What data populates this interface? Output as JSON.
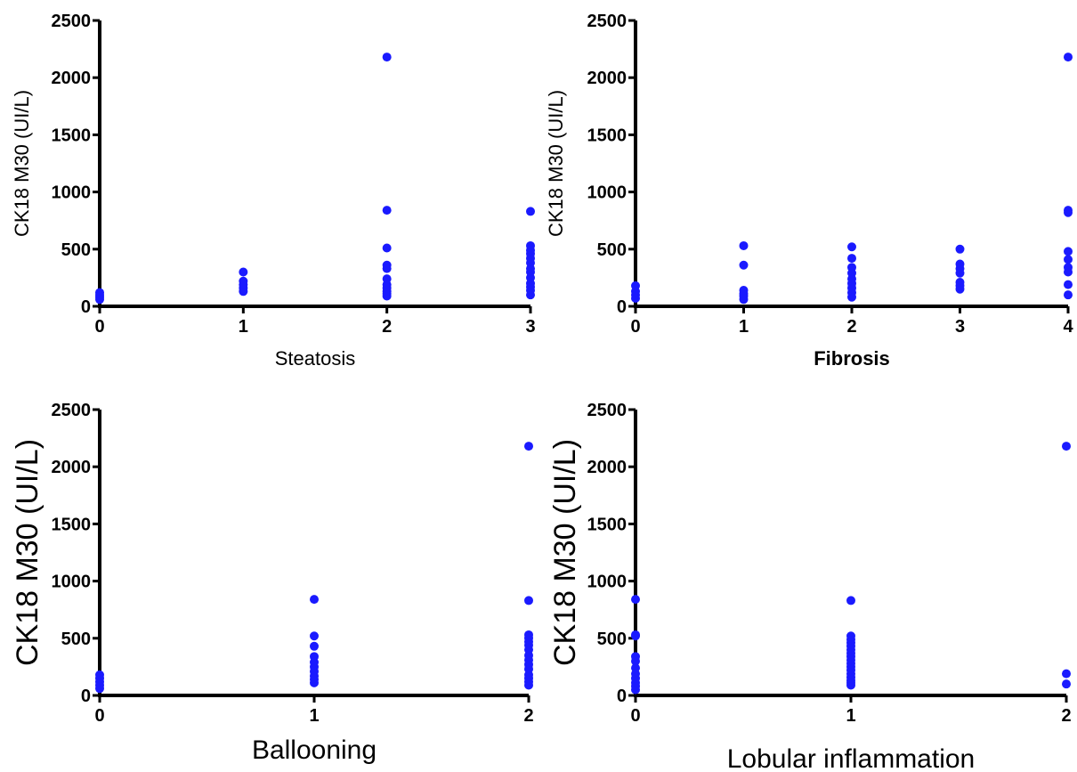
{
  "chart_data": [
    {
      "type": "scatter",
      "xlabel": "Steatosis",
      "ylabel": "CK18 M30 (UI/L)",
      "xlim": [
        0,
        3
      ],
      "ylim": [
        0,
        2500
      ],
      "x_ticks": [
        "0",
        "1",
        "2",
        "3"
      ],
      "y_ticks": [
        "0",
        "500",
        "1000",
        "1500",
        "2000",
        "2500"
      ],
      "marker_color": "#1a1aff",
      "series": [
        {
          "points": [
            [
              0,
              60
            ],
            [
              0,
              80
            ],
            [
              0,
              100
            ],
            [
              0,
              120
            ],
            [
              1,
              130
            ],
            [
              1,
              160
            ],
            [
              1,
              190
            ],
            [
              1,
              220
            ],
            [
              1,
              300
            ],
            [
              2,
              90
            ],
            [
              2,
              110
            ],
            [
              2,
              130
            ],
            [
              2,
              160
            ],
            [
              2,
              190
            ],
            [
              2,
              240
            ],
            [
              2,
              330
            ],
            [
              2,
              360
            ],
            [
              2,
              510
            ],
            [
              2,
              840
            ],
            [
              2,
              2180
            ],
            [
              3,
              100
            ],
            [
              3,
              140
            ],
            [
              3,
              170
            ],
            [
              3,
              200
            ],
            [
              3,
              250
            ],
            [
              3,
              300
            ],
            [
              3,
              330
            ],
            [
              3,
              380
            ],
            [
              3,
              420
            ],
            [
              3,
              460
            ],
            [
              3,
              490
            ],
            [
              3,
              530
            ],
            [
              3,
              830
            ]
          ]
        }
      ]
    },
    {
      "type": "scatter",
      "xlabel": "Fibrosis",
      "ylabel": "CK18 M30 (UI/L)",
      "xlim": [
        0,
        4
      ],
      "ylim": [
        0,
        2500
      ],
      "x_ticks": [
        "0",
        "1",
        "2",
        "3",
        "4"
      ],
      "y_ticks": [
        "0",
        "500",
        "1000",
        "1500",
        "2000",
        "2500"
      ],
      "marker_color": "#1a1aff",
      "series": [
        {
          "points": [
            [
              0,
              70
            ],
            [
              0,
              100
            ],
            [
              0,
              130
            ],
            [
              0,
              180
            ],
            [
              1,
              60
            ],
            [
              1,
              90
            ],
            [
              1,
              110
            ],
            [
              1,
              140
            ],
            [
              1,
              360
            ],
            [
              1,
              530
            ],
            [
              2,
              80
            ],
            [
              2,
              120
            ],
            [
              2,
              160
            ],
            [
              2,
              200
            ],
            [
              2,
              240
            ],
            [
              2,
              290
            ],
            [
              2,
              340
            ],
            [
              2,
              420
            ],
            [
              2,
              520
            ],
            [
              3,
              150
            ],
            [
              3,
              180
            ],
            [
              3,
              210
            ],
            [
              3,
              290
            ],
            [
              3,
              330
            ],
            [
              3,
              370
            ],
            [
              3,
              500
            ],
            [
              4,
              100
            ],
            [
              4,
              190
            ],
            [
              4,
              300
            ],
            [
              4,
              340
            ],
            [
              4,
              410
            ],
            [
              4,
              480
            ],
            [
              4,
              820
            ],
            [
              4,
              840
            ],
            [
              4,
              2180
            ]
          ]
        }
      ]
    },
    {
      "type": "scatter",
      "xlabel": "Ballooning",
      "ylabel": "CK18 M30 (UI/L)",
      "xlim": [
        0,
        2
      ],
      "ylim": [
        0,
        2500
      ],
      "x_ticks": [
        "0",
        "1",
        "2"
      ],
      "y_ticks": [
        "0",
        "500",
        "1000",
        "1500",
        "2000",
        "2500"
      ],
      "marker_color": "#1a1aff",
      "series": [
        {
          "points": [
            [
              0,
              60
            ],
            [
              0,
              90
            ],
            [
              0,
              120
            ],
            [
              0,
              150
            ],
            [
              0,
              180
            ],
            [
              1,
              110
            ],
            [
              1,
              140
            ],
            [
              1,
              170
            ],
            [
              1,
              210
            ],
            [
              1,
              250
            ],
            [
              1,
              290
            ],
            [
              1,
              340
            ],
            [
              1,
              430
            ],
            [
              1,
              520
            ],
            [
              1,
              840
            ],
            [
              2,
              90
            ],
            [
              2,
              120
            ],
            [
              2,
              150
            ],
            [
              2,
              180
            ],
            [
              2,
              230
            ],
            [
              2,
              270
            ],
            [
              2,
              310
            ],
            [
              2,
              350
            ],
            [
              2,
              400
            ],
            [
              2,
              440
            ],
            [
              2,
              470
            ],
            [
              2,
              500
            ],
            [
              2,
              530
            ],
            [
              2,
              830
            ],
            [
              2,
              2180
            ]
          ]
        }
      ]
    },
    {
      "type": "scatter",
      "xlabel": "Lobular inflammation",
      "ylabel": "CK18 M30 (UI/L)",
      "xlim": [
        0,
        2
      ],
      "ylim": [
        0,
        2500
      ],
      "x_ticks": [
        "0",
        "1",
        "2"
      ],
      "y_ticks": [
        "0",
        "500",
        "1000",
        "1500",
        "2000",
        "2500"
      ],
      "marker_color": "#1a1aff",
      "series": [
        {
          "points": [
            [
              0,
              50
            ],
            [
              0,
              80
            ],
            [
              0,
              110
            ],
            [
              0,
              150
            ],
            [
              0,
              190
            ],
            [
              0,
              240
            ],
            [
              0,
              300
            ],
            [
              0,
              340
            ],
            [
              0,
              520
            ],
            [
              0,
              530
            ],
            [
              0,
              840
            ],
            [
              1,
              90
            ],
            [
              1,
              110
            ],
            [
              1,
              130
            ],
            [
              1,
              160
            ],
            [
              1,
              190
            ],
            [
              1,
              220
            ],
            [
              1,
              250
            ],
            [
              1,
              280
            ],
            [
              1,
              310
            ],
            [
              1,
              340
            ],
            [
              1,
              370
            ],
            [
              1,
              400
            ],
            [
              1,
              430
            ],
            [
              1,
              460
            ],
            [
              1,
              490
            ],
            [
              1,
              520
            ],
            [
              1,
              830
            ],
            [
              2,
              100
            ],
            [
              2,
              190
            ],
            [
              2,
              2180
            ]
          ]
        }
      ]
    }
  ]
}
